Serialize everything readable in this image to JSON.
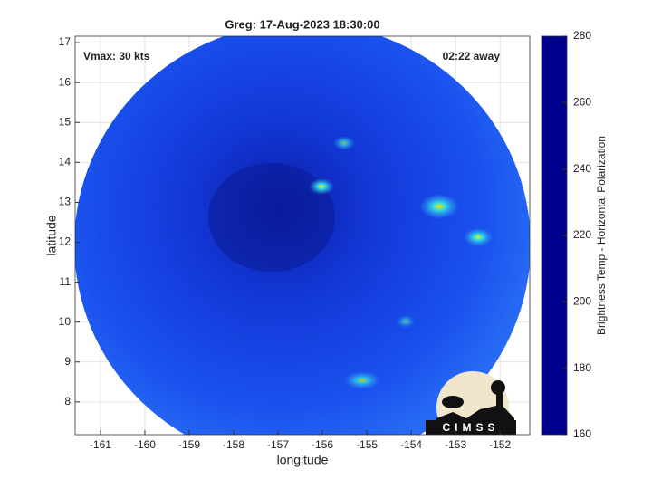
{
  "chart_data": {
    "type": "image-map",
    "title": "Greg: 17-Aug-2023 18:30:00",
    "xlabel": "longitude",
    "ylabel": "latitude",
    "xlim": [
      -161.57,
      -151.33
    ],
    "ylim": [
      7.18,
      17.16
    ],
    "xticks": [
      -161,
      -160,
      -159,
      -158,
      -157,
      -156,
      -155,
      -154,
      -153,
      -152
    ],
    "yticks": [
      8,
      9,
      10,
      11,
      12,
      13,
      14,
      15,
      16,
      17
    ],
    "grid": true,
    "annotations": [
      "Vmax: 30 kts",
      "02:22 away"
    ],
    "colorbar": {
      "label": "Brightness Temp - Horizontal Polarization",
      "clim": [
        160,
        280
      ],
      "ticks": [
        160,
        180,
        200,
        220,
        240,
        260,
        280
      ],
      "colormap": "jet"
    },
    "logo": "CIMSS"
  }
}
